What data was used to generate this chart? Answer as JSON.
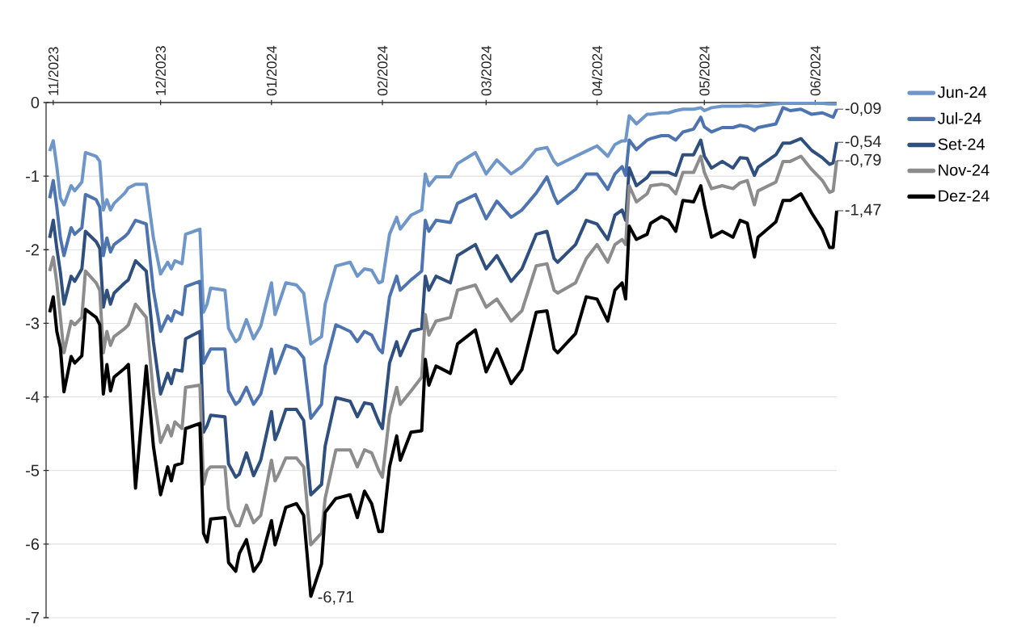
{
  "chart_data": {
    "type": "line",
    "x": [
      "2023-10-31",
      "2023-11-01",
      "2023-11-02",
      "2023-11-03",
      "2023-11-04",
      "2023-11-06",
      "2023-11-07",
      "2023-11-09",
      "2023-11-10",
      "2023-11-13",
      "2023-11-14",
      "2023-11-15",
      "2023-11-16",
      "2023-11-17",
      "2023-11-18",
      "2023-11-21",
      "2023-11-22",
      "2023-11-24",
      "2023-11-27",
      "2023-11-29",
      "2023-12-01",
      "2023-12-03",
      "2023-12-04",
      "2023-12-05",
      "2023-12-07",
      "2023-12-08",
      "2023-12-12",
      "2023-12-13",
      "2023-12-14",
      "2023-12-15",
      "2023-12-19",
      "2023-12-20",
      "2023-12-22",
      "2023-12-23",
      "2023-12-25",
      "2023-12-27",
      "2023-12-29",
      "2024-01-01",
      "2024-01-02",
      "2024-01-03",
      "2024-01-05",
      "2024-01-08",
      "2024-01-10",
      "2024-01-12",
      "2024-01-15",
      "2024-01-16",
      "2024-01-19",
      "2024-01-23",
      "2024-01-25",
      "2024-01-27",
      "2024-01-29",
      "2024-01-31",
      "2024-02-01",
      "2024-02-03",
      "2024-02-05",
      "2024-02-06",
      "2024-02-09",
      "2024-02-12",
      "2024-02-13",
      "2024-02-14",
      "2024-02-16",
      "2024-02-20",
      "2024-02-22",
      "2024-02-27",
      "2024-03-01",
      "2024-03-04",
      "2024-03-08",
      "2024-03-11",
      "2024-03-15",
      "2024-03-18",
      "2024-03-20",
      "2024-03-21",
      "2024-03-26",
      "2024-03-29",
      "2024-04-01",
      "2024-04-04",
      "2024-04-06",
      "2024-04-08",
      "2024-04-09",
      "2024-04-10",
      "2024-04-12",
      "2024-04-15",
      "2024-04-16",
      "2024-04-19",
      "2024-04-21",
      "2024-04-23",
      "2024-04-25",
      "2024-04-28",
      "2024-04-30",
      "2024-05-01",
      "2024-05-03",
      "2024-05-06",
      "2024-05-09",
      "2024-05-11",
      "2024-05-13",
      "2024-05-15",
      "2024-05-16",
      "2024-05-21",
      "2024-05-23",
      "2024-05-25",
      "2024-05-28",
      "2024-05-31",
      "2024-06-03",
      "2024-06-05",
      "2024-06-06",
      "2024-06-07"
    ],
    "series": [
      {
        "name": "Jun-24",
        "color": "#6f96c8",
        "values": [
          -0.66,
          -0.52,
          -0.87,
          -1.3,
          -1.39,
          -1.13,
          -1.2,
          -1.08,
          -0.68,
          -0.73,
          -0.8,
          -1.46,
          -1.32,
          -1.46,
          -1.37,
          -1.23,
          -1.16,
          -1.11,
          -1.11,
          -1.84,
          -2.33,
          -2.17,
          -2.26,
          -2.15,
          -2.19,
          -1.79,
          -1.72,
          -2.85,
          -2.74,
          -2.52,
          -2.55,
          -3.07,
          -3.25,
          -3.21,
          -2.95,
          -3.21,
          -3.04,
          -2.45,
          -2.88,
          -2.74,
          -2.45,
          -2.48,
          -2.59,
          -3.28,
          -3.18,
          -2.74,
          -2.22,
          -2.17,
          -2.36,
          -2.26,
          -2.28,
          -2.45,
          -2.43,
          -1.79,
          -1.56,
          -1.72,
          -1.53,
          -1.46,
          -0.97,
          -1.13,
          -1.01,
          -1.01,
          -0.83,
          -0.68,
          -0.97,
          -0.78,
          -0.97,
          -0.87,
          -0.64,
          -0.61,
          -0.8,
          -0.85,
          -0.73,
          -0.66,
          -0.59,
          -0.73,
          -0.57,
          -0.52,
          -0.52,
          -0.18,
          -0.29,
          -0.16,
          -0.16,
          -0.14,
          -0.14,
          -0.11,
          -0.09,
          -0.09,
          -0.07,
          -0.11,
          -0.07,
          -0.05,
          -0.05,
          -0.05,
          -0.04,
          -0.05,
          -0.05,
          -0.02,
          -0.01,
          -0.01,
          -0.01,
          -0.01,
          -0.01,
          -0.02,
          -0.02,
          -0.02
        ]
      },
      {
        "name": "Jul-24",
        "color": "#4d74b0",
        "values": [
          -1.3,
          -1.06,
          -1.42,
          -1.84,
          -2.08,
          -1.7,
          -1.79,
          -1.7,
          -1.25,
          -1.32,
          -1.42,
          -2.08,
          -1.84,
          -2.03,
          -1.93,
          -1.82,
          -1.77,
          -1.6,
          -1.65,
          -2.55,
          -3.11,
          -2.9,
          -2.97,
          -2.83,
          -2.88,
          -2.5,
          -2.43,
          -3.54,
          -3.44,
          -3.35,
          -3.35,
          -3.92,
          -4.1,
          -4.06,
          -3.87,
          -4.1,
          -3.96,
          -3.35,
          -3.68,
          -3.56,
          -3.3,
          -3.35,
          -3.47,
          -4.29,
          -4.1,
          -3.58,
          -3.02,
          -3.11,
          -3.25,
          -3.11,
          -3.16,
          -3.35,
          -3.4,
          -2.64,
          -2.36,
          -2.55,
          -2.41,
          -2.29,
          -1.6,
          -1.75,
          -1.6,
          -1.63,
          -1.37,
          -1.25,
          -1.58,
          -1.34,
          -1.56,
          -1.46,
          -1.23,
          -1.01,
          -1.27,
          -1.37,
          -1.18,
          -0.97,
          -0.97,
          -1.18,
          -0.97,
          -0.87,
          -0.99,
          -0.51,
          -0.64,
          -0.51,
          -0.49,
          -0.45,
          -0.45,
          -0.51,
          -0.4,
          -0.36,
          -0.2,
          -0.33,
          -0.4,
          -0.34,
          -0.34,
          -0.31,
          -0.33,
          -0.38,
          -0.34,
          -0.29,
          -0.07,
          -0.11,
          -0.09,
          -0.16,
          -0.14,
          -0.18,
          -0.2,
          -0.09
        ]
      },
      {
        "name": "Set-24",
        "color": "#2f4f7f",
        "values": [
          -1.84,
          -1.6,
          -1.98,
          -2.31,
          -2.74,
          -2.36,
          -2.43,
          -2.26,
          -1.75,
          -1.89,
          -1.98,
          -2.78,
          -2.55,
          -2.74,
          -2.59,
          -2.45,
          -2.41,
          -2.15,
          -2.29,
          -3.25,
          -3.96,
          -3.68,
          -3.82,
          -3.63,
          -3.65,
          -3.21,
          -3.11,
          -4.48,
          -4.39,
          -4.25,
          -4.27,
          -4.91,
          -5.09,
          -5.05,
          -4.76,
          -5.07,
          -4.86,
          -4.2,
          -4.58,
          -4.46,
          -4.17,
          -4.17,
          -4.32,
          -5.33,
          -5.19,
          -4.67,
          -4.01,
          -4.06,
          -4.27,
          -4.08,
          -4.1,
          -4.34,
          -4.43,
          -3.54,
          -3.25,
          -3.44,
          -3.11,
          -3.07,
          -2.36,
          -2.55,
          -2.36,
          -2.45,
          -2.08,
          -1.93,
          -2.26,
          -2.08,
          -2.43,
          -2.26,
          -1.79,
          -1.75,
          -2.12,
          -2.17,
          -1.93,
          -1.6,
          -1.65,
          -1.86,
          -1.53,
          -1.46,
          -1.6,
          -0.89,
          -1.13,
          -1.02,
          -0.95,
          -0.95,
          -0.95,
          -0.99,
          -0.71,
          -0.71,
          -0.51,
          -0.73,
          -0.89,
          -0.8,
          -0.89,
          -0.75,
          -0.76,
          -0.99,
          -0.88,
          -0.71,
          -0.55,
          -0.55,
          -0.49,
          -0.65,
          -0.75,
          -0.84,
          -0.82,
          -0.54
        ]
      },
      {
        "name": "Nov-24",
        "color": "#8c8c8c",
        "values": [
          -2.29,
          -2.1,
          -2.45,
          -2.92,
          -3.4,
          -2.97,
          -3.02,
          -2.92,
          -2.29,
          -2.45,
          -2.55,
          -3.4,
          -3.11,
          -3.3,
          -3.18,
          -3.07,
          -3.02,
          -2.74,
          -2.92,
          -3.96,
          -4.62,
          -4.39,
          -4.53,
          -4.34,
          -4.43,
          -3.87,
          -3.84,
          -5.19,
          -5.0,
          -4.95,
          -4.95,
          -5.52,
          -5.75,
          -5.75,
          -5.47,
          -5.71,
          -5.61,
          -4.86,
          -5.14,
          -5.05,
          -4.83,
          -4.83,
          -4.95,
          -6.01,
          -5.85,
          -5.38,
          -4.72,
          -4.72,
          -4.95,
          -4.72,
          -4.76,
          -5.0,
          -5.09,
          -4.25,
          -3.87,
          -4.1,
          -3.92,
          -3.73,
          -2.88,
          -3.16,
          -2.97,
          -2.92,
          -2.55,
          -2.48,
          -2.78,
          -2.67,
          -2.97,
          -2.83,
          -2.22,
          -2.19,
          -2.55,
          -2.59,
          -2.45,
          -2.12,
          -1.93,
          -2.17,
          -1.93,
          -1.86,
          -1.93,
          -1.13,
          -1.35,
          -1.24,
          -1.13,
          -1.11,
          -1.13,
          -1.24,
          -0.95,
          -0.95,
          -0.73,
          -0.95,
          -1.17,
          -1.13,
          -1.17,
          -1.09,
          -1.06,
          -1.39,
          -1.2,
          -1.08,
          -0.8,
          -0.8,
          -0.73,
          -0.91,
          -1.06,
          -1.22,
          -1.2,
          -0.79
        ]
      },
      {
        "name": "Dez-24",
        "color": "#000000",
        "values": [
          -2.85,
          -2.64,
          -3.11,
          -3.33,
          -3.93,
          -3.45,
          -3.54,
          -3.44,
          -2.81,
          -2.92,
          -3.02,
          -3.96,
          -3.56,
          -3.92,
          -3.73,
          -3.61,
          -3.56,
          -5.24,
          -3.58,
          -4.67,
          -5.33,
          -4.95,
          -5.14,
          -4.93,
          -4.9,
          -4.43,
          -4.36,
          -5.85,
          -5.97,
          -5.66,
          -5.64,
          -6.25,
          -6.37,
          -6.13,
          -5.94,
          -6.37,
          -6.23,
          -5.68,
          -6.01,
          -5.85,
          -5.5,
          -5.45,
          -5.61,
          -6.71,
          -6.27,
          -5.57,
          -5.38,
          -5.33,
          -5.64,
          -5.28,
          -5.45,
          -5.83,
          -5.83,
          -4.95,
          -4.53,
          -4.86,
          -4.48,
          -4.46,
          -3.49,
          -3.84,
          -3.58,
          -3.68,
          -3.28,
          -3.09,
          -3.66,
          -3.35,
          -3.82,
          -3.63,
          -2.85,
          -2.83,
          -3.35,
          -3.4,
          -3.14,
          -2.64,
          -2.67,
          -2.97,
          -2.55,
          -2.45,
          -2.67,
          -1.68,
          -1.86,
          -1.79,
          -1.64,
          -1.55,
          -1.6,
          -1.75,
          -1.33,
          -1.35,
          -1.13,
          -1.39,
          -1.83,
          -1.75,
          -1.83,
          -1.6,
          -1.64,
          -2.1,
          -1.83,
          -1.62,
          -1.33,
          -1.33,
          -1.24,
          -1.5,
          -1.73,
          -1.97,
          -1.97,
          -1.47
        ]
      }
    ],
    "xlim": [
      "2023-10-30",
      "2024-06-07"
    ],
    "xticks": [
      {
        "value": "2023-11-01",
        "label": "11/2023"
      },
      {
        "value": "2023-12-01",
        "label": "12/2023"
      },
      {
        "value": "2024-01-01",
        "label": "01/2024"
      },
      {
        "value": "2024-02-01",
        "label": "02/2024"
      },
      {
        "value": "2024-03-01",
        "label": "03/2024"
      },
      {
        "value": "2024-04-01",
        "label": "04/2024"
      },
      {
        "value": "2024-05-01",
        "label": "05/2024"
      },
      {
        "value": "2024-06-01",
        "label": "06/2024"
      }
    ],
    "ylim": [
      -7,
      0
    ],
    "yticks": [
      -7,
      -6,
      -5,
      -4,
      -3,
      -2,
      -1,
      0
    ],
    "grid": "y",
    "legend": "right",
    "annotations": [
      {
        "text": "-6,71",
        "x": "2024-01-12",
        "y": -6.71
      },
      {
        "text": "-0,09",
        "x": "2024-06-07",
        "y": -0.09
      },
      {
        "text": "-0,54",
        "x": "2024-06-07",
        "y": -0.54
      },
      {
        "text": "-0,79",
        "x": "2024-06-07",
        "y": -0.79
      },
      {
        "text": "-1,47",
        "x": "2024-06-07",
        "y": -1.47
      }
    ]
  }
}
